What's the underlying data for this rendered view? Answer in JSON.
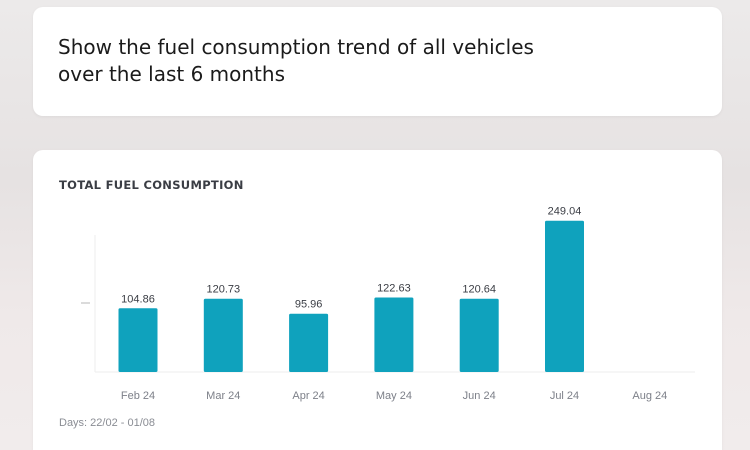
{
  "query": {
    "line1": "Show the fuel consumption trend of all vehicles",
    "line2": "over the last 6 months"
  },
  "chart": {
    "title": "TOTAL FUEL CONSUMPTION",
    "footer": "Days: 22/02 - 01/08"
  },
  "colors": {
    "bar": "#0fa2bd",
    "card": "#ffffff"
  },
  "chart_data": {
    "type": "bar",
    "title": "TOTAL FUEL CONSUMPTION",
    "categories": [
      "Feb 24",
      "Mar 24",
      "Apr 24",
      "May 24",
      "Jun 24",
      "Jul 24",
      "Aug 24"
    ],
    "values": [
      104.86,
      120.73,
      95.96,
      122.63,
      120.64,
      249.04,
      null
    ],
    "value_labels": [
      "104.86",
      "120.73",
      "95.96",
      "122.63",
      "120.64",
      "249.04",
      ""
    ],
    "ylim": [
      0,
      270
    ],
    "grid": false,
    "legend": "none"
  }
}
